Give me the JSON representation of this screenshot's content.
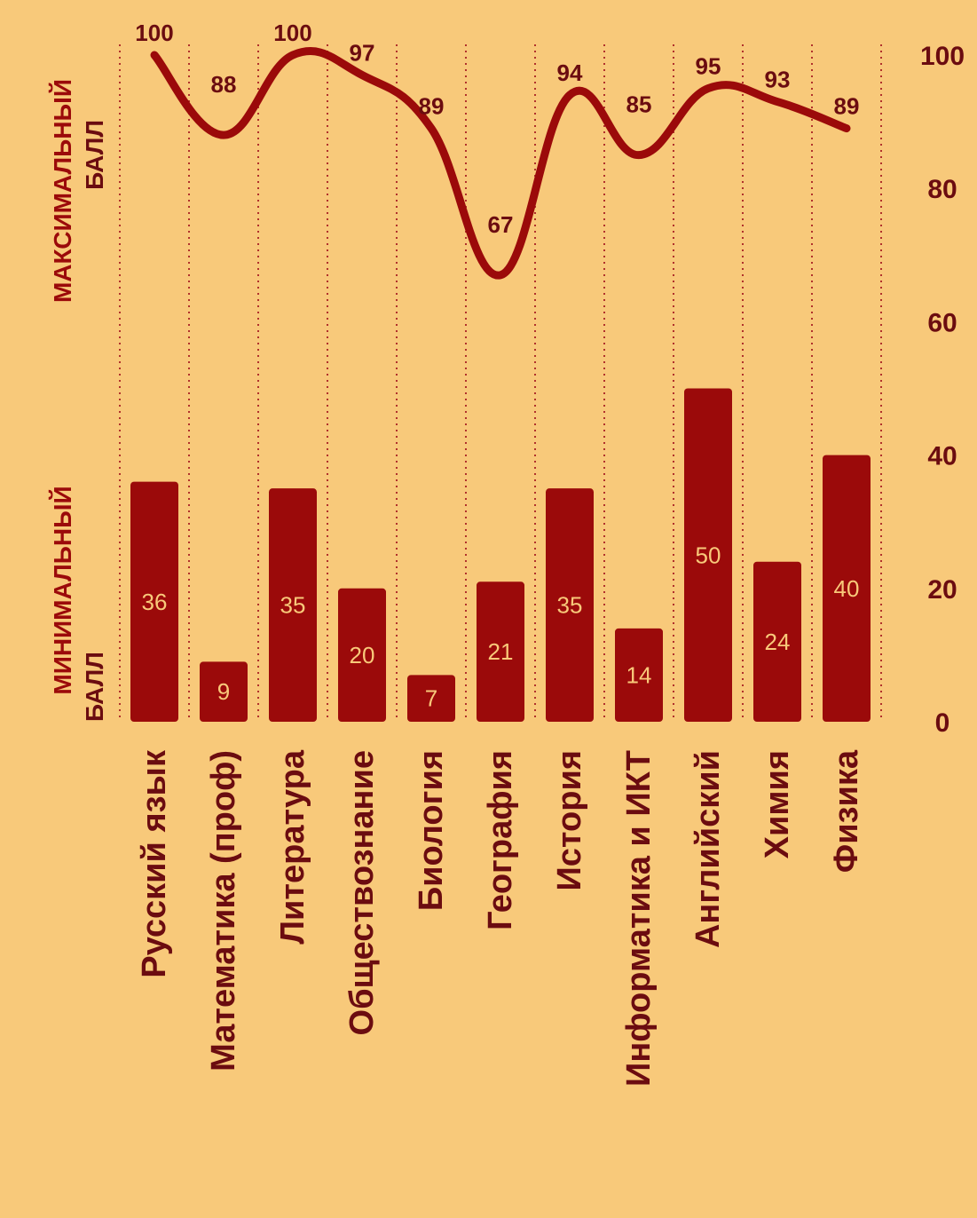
{
  "chart_data": {
    "type": "bar",
    "categories": [
      "Русский язык",
      "Математика (проф)",
      "Литература",
      "Обществознание",
      "Биология",
      "География",
      "История",
      "Информатика и ИКТ",
      "Английский",
      "Химия",
      "Физика"
    ],
    "series": [
      {
        "name": "МИНИМАЛЬНЫЙ БАЛЛ",
        "type": "bar",
        "values": [
          36,
          9,
          35,
          20,
          7,
          21,
          35,
          14,
          50,
          24,
          40
        ]
      },
      {
        "name": "МАКСИМАЛЬНЫЙ БАЛЛ",
        "type": "line",
        "values": [
          100,
          88,
          100,
          97,
          89,
          67,
          94,
          85,
          95,
          93,
          89
        ]
      }
    ],
    "y_ticks": [
      "0",
      "20",
      "40",
      "60",
      "80",
      "100"
    ],
    "ylim": [
      0,
      100
    ],
    "grid": "vertical dotted separators",
    "colors": {
      "background": "#f8c97a",
      "bar": "#9b0a0a",
      "line": "#9b0a0a",
      "text": "#6b0c10",
      "label_in_bar": "#f8c97a",
      "separator": "#b0312c"
    }
  },
  "labels": {
    "max_title_line1": "МАКСИМАЛЬНЫЙ",
    "max_title_line2": "БАЛЛ",
    "min_title_line1": "МИНИМАЛЬНЫЙ",
    "min_title_line2": "БАЛЛ"
  }
}
